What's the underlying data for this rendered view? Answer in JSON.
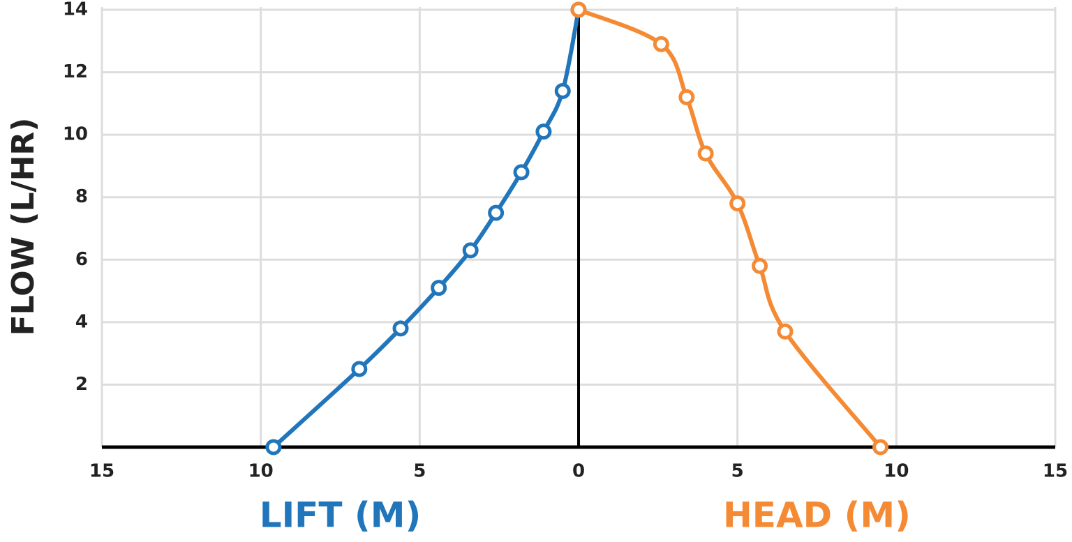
{
  "chart_data": {
    "type": "line",
    "ylabel": "FLOW (L/HR)",
    "xlim": [
      -15,
      15
    ],
    "xticks": [
      {
        "value": -15,
        "label": "15"
      },
      {
        "value": -10,
        "label": "10"
      },
      {
        "value": -5,
        "label": "5"
      },
      0,
      5,
      10,
      15
    ],
    "ylim": [
      0,
      14
    ],
    "yticks": [
      2,
      4,
      6,
      8,
      10,
      12,
      14
    ],
    "grid": true,
    "series": [
      {
        "name": "LIFT (M)",
        "color": "#2176bb",
        "x": [
          -9.6,
          -6.9,
          -5.6,
          -4.4,
          -3.4,
          -2.6,
          -1.8,
          -1.1,
          -0.5,
          0
        ],
        "values": [
          0,
          2.5,
          3.8,
          5.1,
          6.3,
          7.5,
          8.8,
          10.1,
          11.4,
          14
        ]
      },
      {
        "name": "HEAD (M)",
        "color": "#f58a34",
        "x": [
          0,
          2.6,
          3.4,
          4.0,
          5.0,
          5.7,
          6.5,
          9.5
        ],
        "values": [
          14,
          12.9,
          11.2,
          9.4,
          7.8,
          5.8,
          3.7,
          0
        ]
      }
    ]
  }
}
